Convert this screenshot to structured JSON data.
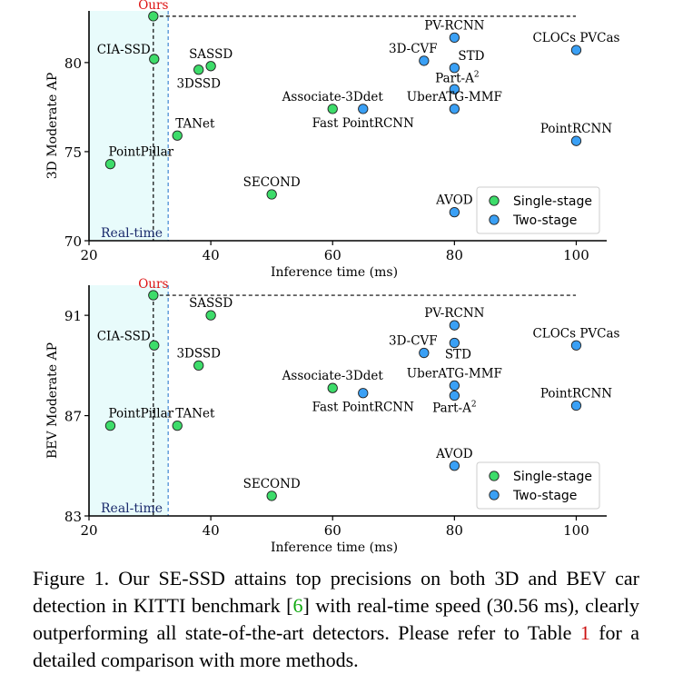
{
  "chart_data": [
    {
      "type": "scatter",
      "xlabel": "Inference time (ms)",
      "ylabel": "3D Moderate AP",
      "xlim": [
        20,
        105
      ],
      "ylim": [
        70,
        82.9
      ],
      "xticks": [
        20,
        40,
        60,
        80,
        100
      ],
      "yticks": [
        70,
        75,
        80
      ],
      "grid": false,
      "legend_position": "bottom-right",
      "region_label": "Real-time",
      "realtime_limit": 33,
      "ours_time": 30.56,
      "ours_ap": 82.6,
      "points": [
        {
          "label": "Ours",
          "x": 30.56,
          "y": 82.6,
          "kind": "Single-stage",
          "lx": 0,
          "ly": -8,
          "anchor": "middle",
          "highlight": true
        },
        {
          "label": "CIA-SSD",
          "x": 30.7,
          "y": 80.2,
          "kind": "Single-stage",
          "lx": -4,
          "ly": -6,
          "anchor": "end"
        },
        {
          "label": "SASSD",
          "x": 40,
          "y": 79.8,
          "kind": "Single-stage",
          "lx": 0,
          "ly": -9,
          "anchor": "middle"
        },
        {
          "label": "3DSSD",
          "x": 38,
          "y": 79.6,
          "kind": "Single-stage",
          "lx": 0,
          "ly": 20,
          "anchor": "middle"
        },
        {
          "label": "Associate-3Ddet",
          "x": 60,
          "y": 77.4,
          "kind": "Single-stage",
          "lx": 0,
          "ly": -9,
          "anchor": "middle"
        },
        {
          "label": "TANet",
          "x": 34.5,
          "y": 75.9,
          "kind": "Single-stage",
          "lx": -2,
          "ly": -9,
          "anchor": "start"
        },
        {
          "label": "PointPillar",
          "x": 23.5,
          "y": 74.3,
          "kind": "Single-stage",
          "lx": -2,
          "ly": -9,
          "anchor": "start"
        },
        {
          "label": "SECOND",
          "x": 50,
          "y": 72.6,
          "kind": "Single-stage",
          "lx": 0,
          "ly": -9,
          "anchor": "middle"
        },
        {
          "label": "PV-RCNN",
          "x": 80,
          "y": 81.4,
          "kind": "Two-stage",
          "lx": 0,
          "ly": -9,
          "anchor": "middle"
        },
        {
          "label": "CLOCs PVCas",
          "x": 100,
          "y": 80.7,
          "kind": "Two-stage",
          "lx": 0,
          "ly": -9,
          "anchor": "middle"
        },
        {
          "label": "3D-CVF",
          "x": 75,
          "y": 80.1,
          "kind": "Two-stage",
          "lx": -12,
          "ly": -9,
          "anchor": "middle"
        },
        {
          "label": "STD",
          "x": 80,
          "y": 79.7,
          "kind": "Two-stage",
          "lx": 4,
          "ly": -9,
          "anchor": "start"
        },
        {
          "label": "Part-A",
          "x": 80,
          "y": 78.5,
          "kind": "Two-stage",
          "lx": 3,
          "ly": -8,
          "anchor": "middle",
          "sup": "2"
        },
        {
          "label": "UberATG-MMF",
          "x": 80,
          "y": 77.4,
          "kind": "Two-stage",
          "lx": 0,
          "ly": -9,
          "anchor": "middle"
        },
        {
          "label": "Fast PointRCNN",
          "x": 65,
          "y": 77.4,
          "kind": "Two-stage",
          "lx": 0,
          "ly": 20,
          "anchor": "middle"
        },
        {
          "label": "PointRCNN",
          "x": 100,
          "y": 75.6,
          "kind": "Two-stage",
          "lx": 0,
          "ly": -9,
          "anchor": "middle"
        },
        {
          "label": "AVOD",
          "x": 80,
          "y": 71.6,
          "kind": "Two-stage",
          "lx": 0,
          "ly": -9,
          "anchor": "middle"
        }
      ]
    },
    {
      "type": "scatter",
      "xlabel": "Inference time (ms)",
      "ylabel": "BEV Moderate AP",
      "xlim": [
        20,
        105
      ],
      "ylim": [
        83,
        92.2
      ],
      "xticks": [
        20,
        40,
        60,
        80,
        100
      ],
      "yticks": [
        83,
        87,
        91
      ],
      "grid": false,
      "legend_position": "bottom-right",
      "region_label": "Real-time",
      "realtime_limit": 33,
      "ours_time": 30.56,
      "ours_ap": 91.8,
      "points": [
        {
          "label": "Ours",
          "x": 30.56,
          "y": 91.8,
          "kind": "Single-stage",
          "lx": 0,
          "ly": -8,
          "anchor": "middle",
          "highlight": true
        },
        {
          "label": "SASSD",
          "x": 40,
          "y": 91.0,
          "kind": "Single-stage",
          "lx": 0,
          "ly": -9,
          "anchor": "middle"
        },
        {
          "label": "CIA-SSD",
          "x": 30.7,
          "y": 89.8,
          "kind": "Single-stage",
          "lx": -4,
          "ly": -6,
          "anchor": "end"
        },
        {
          "label": "3DSSD",
          "x": 38,
          "y": 89.0,
          "kind": "Single-stage",
          "lx": 0,
          "ly": -9,
          "anchor": "middle"
        },
        {
          "label": "Associate-3Ddet",
          "x": 60,
          "y": 88.1,
          "kind": "Single-stage",
          "lx": 0,
          "ly": -9,
          "anchor": "middle"
        },
        {
          "label": "PointPillar",
          "x": 23.5,
          "y": 86.6,
          "kind": "Single-stage",
          "lx": -2,
          "ly": -9,
          "anchor": "start"
        },
        {
          "label": "TANet",
          "x": 34.5,
          "y": 86.6,
          "kind": "Single-stage",
          "lx": -2,
          "ly": -9,
          "anchor": "start"
        },
        {
          "label": "SECOND",
          "x": 50,
          "y": 83.8,
          "kind": "Single-stage",
          "lx": 0,
          "ly": -9,
          "anchor": "middle"
        },
        {
          "label": "PV-RCNN",
          "x": 80,
          "y": 90.6,
          "kind": "Two-stage",
          "lx": 0,
          "ly": -9,
          "anchor": "middle"
        },
        {
          "label": "CLOCs PVCas",
          "x": 100,
          "y": 89.8,
          "kind": "Two-stage",
          "lx": 0,
          "ly": -9,
          "anchor": "middle"
        },
        {
          "label": "3D-CVF",
          "x": 75,
          "y": 89.5,
          "kind": "Two-stage",
          "lx": -12,
          "ly": -9,
          "anchor": "middle"
        },
        {
          "label": "STD",
          "x": 80,
          "y": 89.9,
          "kind": "Two-stage",
          "lx": 4,
          "ly": 17,
          "anchor": "middle"
        },
        {
          "label": "UberATG-MMF",
          "x": 80,
          "y": 88.2,
          "kind": "Two-stage",
          "lx": 0,
          "ly": -9,
          "anchor": "middle"
        },
        {
          "label": "Part-A",
          "x": 80,
          "y": 87.8,
          "kind": "Two-stage",
          "lx": 0,
          "ly": 18,
          "anchor": "middle",
          "sup": "2"
        },
        {
          "label": "Fast PointRCNN",
          "x": 65,
          "y": 87.9,
          "kind": "Two-stage",
          "lx": 0,
          "ly": 20,
          "anchor": "middle"
        },
        {
          "label": "PointRCNN",
          "x": 100,
          "y": 87.4,
          "kind": "Two-stage",
          "lx": 0,
          "ly": -9,
          "anchor": "middle"
        },
        {
          "label": "AVOD",
          "x": 80,
          "y": 85.0,
          "kind": "Two-stage",
          "lx": 0,
          "ly": -9,
          "anchor": "middle"
        }
      ]
    }
  ],
  "legend": [
    {
      "name": "Single-stage",
      "color": "#3ddc6a"
    },
    {
      "name": "Two-stage",
      "color": "#3aa0f5"
    }
  ],
  "colors": {
    "single_stage": "#3ddc6a",
    "two_stage": "#3aa0f5",
    "realtime_fill": "#e8fbfb",
    "realtime_line": "#4d8fd6",
    "ours_label": "#dd1111",
    "realtime_text": "#1a2a6c"
  },
  "caption": {
    "part1": "Figure 1. Our SE-SSD attains top precisions on both 3D and BEV car detection in KITTI benchmark [",
    "ref_a": "6",
    "part2": "] with real-time speed (30.56 ms), clearly outperforming all state-of-the-art detectors.  Please refer to Table ",
    "ref_b": "1",
    "part3": " for a detailed comparison with more methods."
  }
}
